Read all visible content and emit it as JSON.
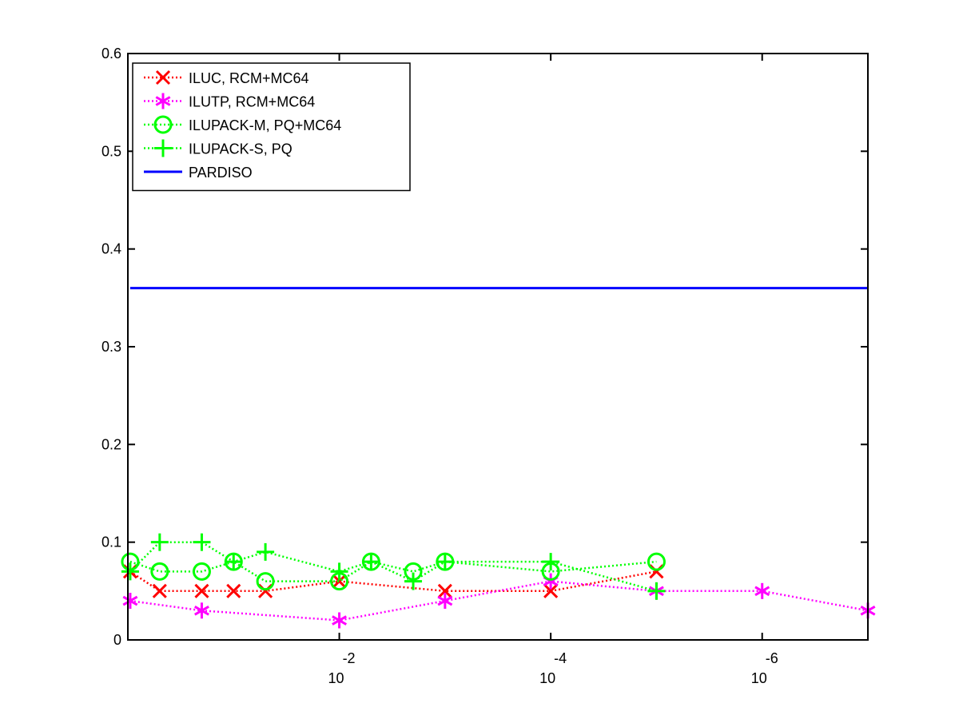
{
  "chart_data": {
    "type": "line",
    "xscale": "log",
    "xlim": [
      1,
      1e-07
    ],
    "ylim": [
      0,
      0.6
    ],
    "grid": false,
    "legend_position": "top-left",
    "x_ticks": [
      {
        "value": 0.01,
        "base": "10",
        "exp": "-2"
      },
      {
        "value": 0.0001,
        "base": "10",
        "exp": "-4"
      },
      {
        "value": 1e-06,
        "base": "10",
        "exp": "-6"
      }
    ],
    "y_ticks": [
      "0",
      "0.1",
      "0.2",
      "0.3",
      "0.4",
      "0.5",
      "0.6"
    ],
    "y_tick_values": [
      0,
      0.1,
      0.2,
      0.3,
      0.4,
      0.5,
      0.6
    ],
    "series": [
      {
        "name": "ILUC, RCM+MC64",
        "color": "#ff0000",
        "marker": "x",
        "linestyle": "dotted",
        "x": [
          0.95,
          0.5,
          0.2,
          0.1,
          0.05,
          0.01,
          0.001,
          0.0001,
          1e-05
        ],
        "y": [
          0.07,
          0.05,
          0.05,
          0.05,
          0.05,
          0.06,
          0.05,
          0.05,
          0.07
        ]
      },
      {
        "name": "ILUTP, RCM+MC64",
        "color": "#ff00ff",
        "marker": "asterisk",
        "linestyle": "dotted",
        "x": [
          0.95,
          0.2,
          0.01,
          0.001,
          0.0001,
          1e-05,
          1e-06,
          1e-07
        ],
        "y": [
          0.04,
          0.03,
          0.02,
          0.04,
          0.06,
          0.05,
          0.05,
          0.03
        ]
      },
      {
        "name": "ILUPACK-M, PQ+MC64",
        "color": "#00ff00",
        "marker": "circle",
        "linestyle": "dotted",
        "x": [
          0.95,
          0.5,
          0.2,
          0.1,
          0.05,
          0.01,
          0.005,
          0.002,
          0.001,
          0.0001,
          1e-05
        ],
        "y": [
          0.08,
          0.07,
          0.07,
          0.08,
          0.06,
          0.06,
          0.08,
          0.07,
          0.08,
          0.07,
          0.08
        ]
      },
      {
        "name": "ILUPACK-S, PQ",
        "color": "#00ff00",
        "marker": "plus",
        "linestyle": "dotted",
        "x": [
          0.95,
          0.5,
          0.2,
          0.1,
          0.05,
          0.01,
          0.005,
          0.002,
          0.001,
          0.0001,
          1e-05
        ],
        "y": [
          0.07,
          0.1,
          0.1,
          0.08,
          0.09,
          0.07,
          0.08,
          0.06,
          0.08,
          0.08,
          0.05
        ]
      },
      {
        "name": "PARDISO",
        "color": "#0000ff",
        "marker": "none",
        "linestyle": "solid",
        "x": [
          0.95,
          1e-07
        ],
        "y": [
          0.36,
          0.36
        ]
      }
    ]
  }
}
